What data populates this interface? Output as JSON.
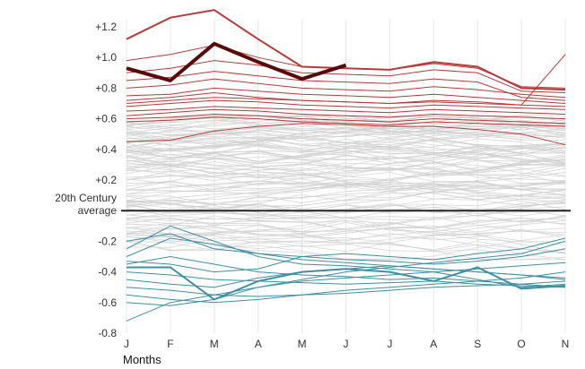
{
  "chart_data": {
    "type": "line",
    "xlabel": "Months",
    "ylabel": "",
    "categories": [
      "J",
      "F",
      "M",
      "A",
      "M",
      "J",
      "J",
      "A",
      "S",
      "O",
      "N"
    ],
    "ylim": [
      -0.8,
      1.25
    ],
    "yticks": [
      {
        "value": 1.2,
        "label": "+1.2"
      },
      {
        "value": 1.0,
        "label": "+1.0"
      },
      {
        "value": 0.8,
        "label": "+0.8"
      },
      {
        "value": 0.6,
        "label": "+0.6"
      },
      {
        "value": 0.4,
        "label": "+0.4"
      },
      {
        "value": 0.2,
        "label": "+0.2"
      },
      {
        "value": -0.2,
        "label": "-0.2"
      },
      {
        "value": -0.4,
        "label": "-0.4"
      },
      {
        "value": -0.6,
        "label": "-0.6"
      },
      {
        "value": -0.8,
        "label": "-0.8"
      }
    ],
    "baseline": {
      "value": 0.0,
      "label_line1": "20th Century",
      "label_line2": "average",
      "color": "#222222"
    },
    "colors": {
      "highlight": "#5a0a0a",
      "warm": "#b83a3a",
      "cool": "#3f8fa3",
      "neutral": "#d0d0d0",
      "grid": "#e8e8e8"
    },
    "highlight_series": {
      "values": [
        0.93,
        0.85,
        1.09,
        0.97,
        0.86,
        0.95
      ]
    },
    "warm_series": [
      {
        "values": [
          1.12,
          1.26,
          1.31,
          1.12,
          0.94,
          0.93,
          0.92,
          0.97,
          0.94,
          0.8,
          0.79
        ]
      },
      {
        "values": [
          0.98,
          1.02,
          1.08,
          1.0,
          0.94,
          0.93,
          0.92,
          0.96,
          0.93,
          0.81,
          0.8
        ]
      },
      {
        "values": [
          0.9,
          0.93,
          0.98,
          0.95,
          0.9,
          0.89,
          0.88,
          0.92,
          0.9,
          0.78,
          0.77
        ]
      },
      {
        "values": [
          0.85,
          0.87,
          0.91,
          0.88,
          0.85,
          0.84,
          0.83,
          0.86,
          0.84,
          0.74,
          0.72
        ]
      },
      {
        "values": [
          0.8,
          0.82,
          0.86,
          0.83,
          0.8,
          0.79,
          0.78,
          0.81,
          0.79,
          0.76,
          0.74
        ]
      },
      {
        "values": [
          0.75,
          0.76,
          0.8,
          0.78,
          0.76,
          0.75,
          0.74,
          0.76,
          0.74,
          0.72,
          0.7
        ]
      },
      {
        "values": [
          0.72,
          0.74,
          0.77,
          0.74,
          0.72,
          0.71,
          0.7,
          0.72,
          0.71,
          0.69,
          0.68
        ]
      },
      {
        "values": [
          0.68,
          0.7,
          0.72,
          0.71,
          0.69,
          0.68,
          0.67,
          0.69,
          0.68,
          0.67,
          0.66
        ]
      },
      {
        "values": [
          0.65,
          0.66,
          0.68,
          0.67,
          0.66,
          0.65,
          0.64,
          0.66,
          0.65,
          0.64,
          0.63
        ]
      },
      {
        "values": [
          0.62,
          0.64,
          0.66,
          0.65,
          0.63,
          0.62,
          0.61,
          0.63,
          0.62,
          0.61,
          0.6
        ]
      },
      {
        "values": [
          0.6,
          0.61,
          0.63,
          0.62,
          0.6,
          0.59,
          0.58,
          0.6,
          0.59,
          0.58,
          0.57
        ]
      },
      {
        "values": [
          0.58,
          0.59,
          0.61,
          0.6,
          0.58,
          0.57,
          0.56,
          0.58,
          0.57,
          0.56,
          0.55
        ]
      },
      {
        "values": [
          0.45,
          0.46,
          0.52,
          0.55,
          0.57,
          0.56,
          0.55,
          0.55,
          0.53,
          0.5,
          0.43
        ]
      },
      {
        "values": [
          0.7,
          0.72,
          0.74,
          0.73,
          0.72,
          0.71,
          0.7,
          0.71,
          0.7,
          0.69,
          1.02
        ]
      }
    ],
    "cool_series": [
      {
        "values": [
          -0.37,
          -0.37,
          -0.58,
          -0.46,
          -0.4,
          -0.38,
          -0.4,
          -0.46,
          -0.37,
          -0.51,
          -0.49
        ]
      },
      {
        "values": [
          -0.25,
          -0.1,
          -0.2,
          -0.3,
          -0.35,
          -0.36,
          -0.38,
          -0.4,
          -0.45,
          -0.5,
          -0.48
        ]
      },
      {
        "values": [
          -0.3,
          -0.18,
          -0.22,
          -0.28,
          -0.32,
          -0.34,
          -0.36,
          -0.38,
          -0.4,
          -0.42,
          -0.44
        ]
      },
      {
        "values": [
          -0.35,
          -0.3,
          -0.35,
          -0.4,
          -0.42,
          -0.43,
          -0.45,
          -0.44,
          -0.46,
          -0.48,
          -0.5
        ]
      },
      {
        "values": [
          -0.4,
          -0.42,
          -0.45,
          -0.46,
          -0.47,
          -0.48,
          -0.47,
          -0.46,
          -0.48,
          -0.49,
          -0.5
        ]
      },
      {
        "values": [
          -0.5,
          -0.52,
          -0.55,
          -0.56,
          -0.55,
          -0.54,
          -0.52,
          -0.5,
          -0.49,
          -0.48,
          -0.46
        ]
      },
      {
        "values": [
          -0.55,
          -0.58,
          -0.6,
          -0.58,
          -0.55,
          -0.52,
          -0.5,
          -0.48,
          -0.46,
          -0.44,
          -0.4
        ]
      },
      {
        "values": [
          -0.6,
          -0.62,
          -0.58,
          -0.5,
          -0.46,
          -0.44,
          -0.42,
          -0.4,
          -0.38,
          -0.36,
          -0.34
        ]
      },
      {
        "values": [
          -0.72,
          -0.6,
          -0.55,
          -0.5,
          -0.45,
          -0.4,
          -0.37,
          -0.34,
          -0.31,
          -0.28,
          -0.2
        ]
      },
      {
        "values": [
          -0.2,
          -0.15,
          -0.25,
          -0.28,
          -0.3,
          -0.32,
          -0.33,
          -0.35,
          -0.33,
          -0.3,
          -0.25
        ]
      },
      {
        "values": [
          -0.45,
          -0.48,
          -0.5,
          -0.44,
          -0.4,
          -0.38,
          -0.36,
          -0.38,
          -0.4,
          -0.42,
          -0.45
        ]
      },
      {
        "values": [
          -0.33,
          -0.35,
          -0.4,
          -0.38,
          -0.3,
          -0.28,
          -0.3,
          -0.32,
          -0.28,
          -0.25,
          -0.18
        ]
      }
    ]
  }
}
